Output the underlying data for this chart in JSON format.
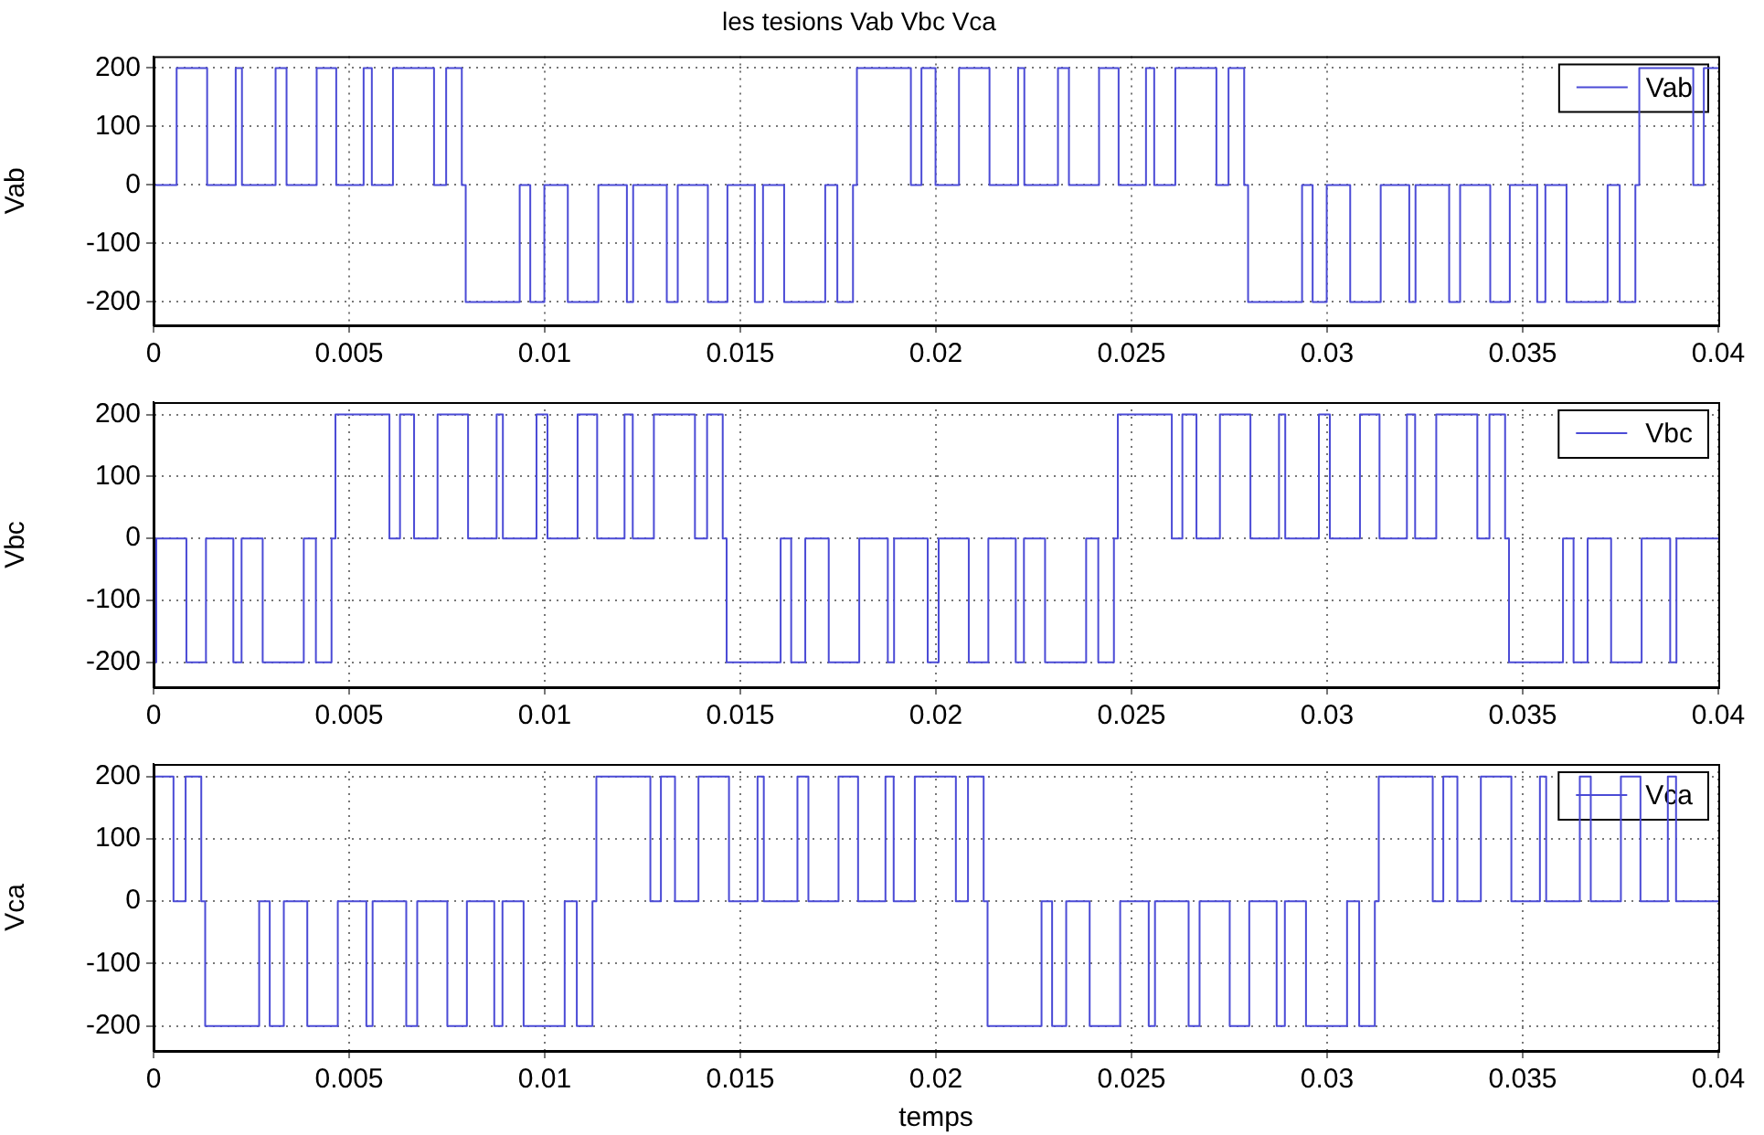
{
  "chart_data": [
    {
      "type": "step",
      "title": "les tesions Vab Vbc Vca",
      "ylabel": "Vab",
      "xlim": [
        0,
        0.04
      ],
      "xticks": [
        0,
        0.005,
        0.01,
        0.015,
        0.02,
        0.025,
        0.03,
        0.035,
        0.04
      ],
      "ylim": [
        -240,
        220
      ],
      "yticks": [
        -200,
        -100,
        0,
        100,
        200
      ],
      "grid": true,
      "legend": "top right",
      "x": [
        0,
        0.00059,
        0.00137,
        0.0021,
        0.00226,
        0.00312,
        0.0034,
        0.00417,
        0.00467,
        0.00537,
        0.00558,
        0.00612,
        0.00717,
        0.00748,
        0.00788,
        0.00798,
        0.00936,
        0.00963,
        0.00999,
        0.01059,
        0.01137,
        0.0121,
        0.01226,
        0.01312,
        0.0134,
        0.01417,
        0.01467,
        0.01537,
        0.01558,
        0.01612,
        0.01717,
        0.01748,
        0.01788,
        0.01798,
        0.01936,
        0.01963,
        0.01999,
        0.02059,
        0.02137,
        0.0221,
        0.02226,
        0.02312,
        0.0234,
        0.02417,
        0.02467,
        0.02537,
        0.02558,
        0.02612,
        0.02717,
        0.02748,
        0.02788,
        0.02798,
        0.02936,
        0.02963,
        0.02999,
        0.03059,
        0.03137,
        0.0321,
        0.03226,
        0.03312,
        0.0334,
        0.03417,
        0.03467,
        0.03537,
        0.03558,
        0.03612,
        0.03717,
        0.03748,
        0.03788,
        0.03798,
        0.03936,
        0.03963,
        0.03999,
        0.04
      ],
      "series": [
        {
          "name": "Vab",
          "color": "#4b4bd6",
          "values": [
            200,
            0,
            200,
            0,
            200,
            0,
            200,
            0,
            200,
            0,
            200,
            0,
            200,
            0,
            200,
            0,
            -200,
            0,
            -200,
            0,
            -200,
            0,
            -200,
            0,
            -200,
            0,
            -200,
            0,
            -200,
            0,
            -200,
            0,
            -200,
            0,
            200,
            0,
            200,
            0,
            200,
            0,
            200,
            0,
            200,
            0,
            200,
            0,
            200,
            0,
            200,
            0,
            200,
            0,
            -200,
            0,
            -200,
            0,
            -200,
            0,
            -200,
            0,
            -200,
            0,
            -200,
            0,
            -200,
            0,
            -200,
            0,
            -200,
            0,
            200,
            0,
            200,
            200
          ]
        }
      ]
    },
    {
      "type": "step",
      "ylabel": "Vbc",
      "xlim": [
        0,
        0.04
      ],
      "xticks": [
        0,
        0.005,
        0.01,
        0.015,
        0.02,
        0.025,
        0.03,
        0.035,
        0.04
      ],
      "ylim": [
        -240,
        220
      ],
      "yticks": [
        -200,
        -100,
        0,
        100,
        200
      ],
      "grid": true,
      "legend": "top right",
      "x": [
        0,
        7e-05,
        0.00084,
        0.00134,
        0.00204,
        0.00225,
        0.00279,
        0.00384,
        0.00415,
        0.00455,
        0.00465,
        0.00603,
        0.0063,
        0.00666,
        0.00726,
        0.00804,
        0.00877,
        0.00893,
        0.00979,
        0.01007,
        0.01084,
        0.01134,
        0.01204,
        0.01225,
        0.01279,
        0.01384,
        0.01415,
        0.01455,
        0.01465,
        0.01603,
        0.0163,
        0.01666,
        0.01726,
        0.01804,
        0.01877,
        0.01893,
        0.01979,
        0.02007,
        0.02084,
        0.02134,
        0.02204,
        0.02225,
        0.02279,
        0.02384,
        0.02415,
        0.02455,
        0.02465,
        0.02603,
        0.0263,
        0.02666,
        0.02726,
        0.02804,
        0.02877,
        0.02893,
        0.02979,
        0.03007,
        0.03084,
        0.03134,
        0.03204,
        0.03225,
        0.03279,
        0.03384,
        0.03415,
        0.03455,
        0.03465,
        0.03603,
        0.0363,
        0.03666,
        0.03726,
        0.03804,
        0.03877,
        0.03893,
        0.03979,
        0.04
      ],
      "series": [
        {
          "name": "Vbc",
          "color": "#4b4bd6",
          "values": [
            0,
            -200,
            0,
            -200,
            0,
            -200,
            0,
            -200,
            0,
            -200,
            0,
            200,
            0,
            200,
            0,
            200,
            0,
            200,
            0,
            200,
            0,
            200,
            0,
            200,
            0,
            200,
            0,
            200,
            0,
            -200,
            0,
            -200,
            0,
            -200,
            0,
            -200,
            0,
            -200,
            0,
            -200,
            0,
            -200,
            0,
            -200,
            0,
            -200,
            0,
            200,
            0,
            200,
            0,
            200,
            0,
            200,
            0,
            200,
            0,
            200,
            0,
            200,
            0,
            200,
            0,
            200,
            0,
            -200,
            0,
            -200,
            0,
            -200,
            0,
            -200,
            0,
            0
          ]
        }
      ]
    },
    {
      "type": "step",
      "ylabel": "Vca",
      "xlabel": "temps",
      "xlim": [
        0,
        0.04
      ],
      "xticks": [
        0,
        0.005,
        0.01,
        0.015,
        0.02,
        0.025,
        0.03,
        0.035,
        0.04
      ],
      "ylim": [
        -240,
        220
      ],
      "yticks": [
        -200,
        -100,
        0,
        100,
        200
      ],
      "grid": true,
      "legend": "top right",
      "x": [
        0,
        0.00051,
        0.00082,
        0.00122,
        0.00132,
        0.0027,
        0.00297,
        0.00333,
        0.00393,
        0.00471,
        0.00544,
        0.0056,
        0.00646,
        0.00674,
        0.00751,
        0.00801,
        0.00871,
        0.00892,
        0.00946,
        0.01051,
        0.01082,
        0.01122,
        0.01132,
        0.0127,
        0.01297,
        0.01333,
        0.01393,
        0.01471,
        0.01544,
        0.0156,
        0.01646,
        0.01674,
        0.01751,
        0.01801,
        0.01871,
        0.01892,
        0.01946,
        0.02051,
        0.02082,
        0.02122,
        0.02132,
        0.0227,
        0.02297,
        0.02333,
        0.02393,
        0.02471,
        0.02544,
        0.0256,
        0.02646,
        0.02674,
        0.02751,
        0.02801,
        0.02871,
        0.02892,
        0.02946,
        0.03051,
        0.03082,
        0.03122,
        0.03132,
        0.0327,
        0.03297,
        0.03333,
        0.03393,
        0.03471,
        0.03544,
        0.0356,
        0.03646,
        0.03674,
        0.03751,
        0.03801,
        0.03871,
        0.03892,
        0.03946,
        0.04
      ],
      "series": [
        {
          "name": "Vca",
          "color": "#4b4bd6",
          "values": [
            0,
            200,
            0,
            200,
            0,
            -200,
            0,
            -200,
            0,
            -200,
            0,
            -200,
            0,
            -200,
            0,
            -200,
            0,
            -200,
            0,
            -200,
            0,
            -200,
            0,
            200,
            0,
            200,
            0,
            200,
            0,
            200,
            0,
            200,
            0,
            200,
            0,
            200,
            0,
            200,
            0,
            200,
            0,
            -200,
            0,
            -200,
            0,
            -200,
            0,
            -200,
            0,
            -200,
            0,
            -200,
            0,
            -200,
            0,
            -200,
            0,
            -200,
            0,
            200,
            0,
            200,
            0,
            200,
            0,
            200,
            0,
            200,
            0,
            200,
            0,
            200,
            0,
            0
          ]
        }
      ]
    }
  ]
}
